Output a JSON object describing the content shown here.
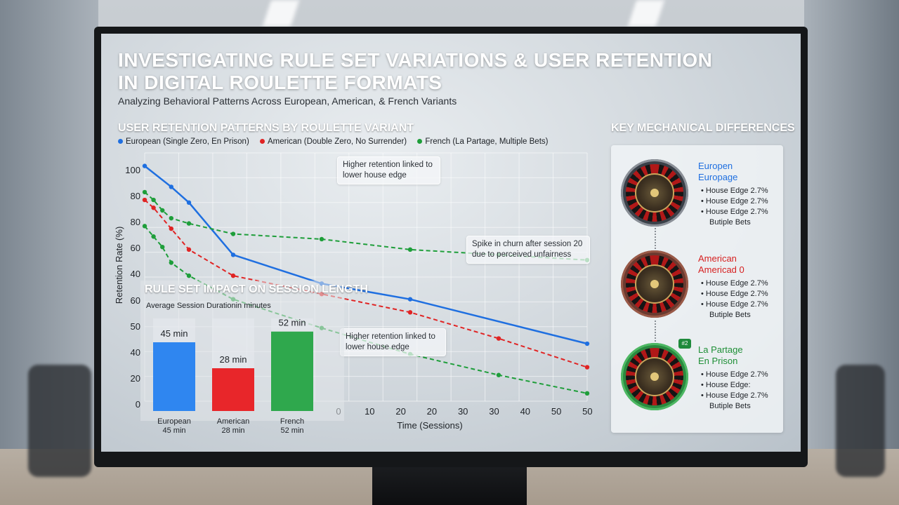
{
  "title": "INVESTIGATING RULE SET VARIATIONS & USER RETENTION IN DIGITAL ROULETTE FORMATS",
  "subtitle": "Analyzing Behavioral Patterns Across European, American, & French Variants",
  "colors": {
    "european": "#1f6fe0",
    "american": "#e02424",
    "french": "#1e9e3a"
  },
  "retention": {
    "section_title": "USER RETENTION PATTERNS BY ROULETTE VARIANT",
    "legend": [
      {
        "label": "European (Single Zero, En Prison)",
        "color": "#1f6fe0"
      },
      {
        "label": "American (Double Zero, No Surrender)",
        "color": "#e02424"
      },
      {
        "label": "French (La Partage, Multiple Bets)",
        "color": "#1e9e3a"
      }
    ],
    "callouts": {
      "top": "Higher retention linked to\nlower house edge",
      "spike": "Spike in churn after session 20\ndue to perceived unfairness",
      "bottom": "Higher retention linked to\nlower house edge"
    }
  },
  "chart_data": [
    {
      "type": "line",
      "title": "USER RETENTION PATTERNS BY ROULETTE VARIANT",
      "xlabel": "Time (Sessions)",
      "ylabel": "Retention Rate (%)",
      "x_ticks": [
        "0",
        "10",
        "20",
        "20",
        "30",
        "30",
        "40",
        "50",
        "50"
      ],
      "y_ticks": [
        "100",
        "80",
        "80",
        "60",
        "40"
      ],
      "grid": true,
      "legend_position": "top",
      "series": [
        {
          "name": "European (Single Zero, En Prison)",
          "color": "#1f6fe0",
          "style": "solid",
          "x": [
            0,
            3,
            5,
            10,
            20,
            30,
            50
          ],
          "y": [
            110,
            102,
            96,
            76,
            65,
            59,
            42
          ]
        },
        {
          "name": "American (Double Zero, No Surrender)",
          "color": "#e02424",
          "style": "dashed",
          "x": [
            0,
            1,
            3,
            5,
            10,
            20,
            30,
            40,
            50
          ],
          "y": [
            97,
            94,
            86,
            78,
            68,
            61,
            54,
            44,
            33
          ]
        },
        {
          "name": "French (La Partage, Multiple Bets)",
          "color": "#1e9e3a",
          "style": "dashed",
          "x": [
            0,
            1,
            2,
            3,
            5,
            10,
            20,
            30,
            40,
            50
          ],
          "y": [
            100,
            97,
            93,
            90,
            88,
            84,
            82,
            78,
            76,
            74
          ]
        },
        {
          "name": "French (La Partage, Multiple Bets)",
          "color": "#1e9e3a",
          "style": "dashed",
          "x": [
            0,
            1,
            2,
            3,
            5,
            10,
            20,
            30,
            40,
            50
          ],
          "y": [
            87,
            83,
            79,
            73,
            68,
            59,
            48,
            38,
            30,
            23
          ]
        }
      ]
    },
    {
      "type": "bar",
      "title": "RULE SET IMPACT ON SESSION LENGTH",
      "subtitle": "Average Session Durationin minutes",
      "categories": [
        "European",
        "American",
        "French"
      ],
      "sublabels": [
        "45 min",
        "28 min",
        "52 min"
      ],
      "value_labels": [
        "45 min",
        "28 min",
        "52 min"
      ],
      "values": [
        45,
        28,
        52
      ],
      "colors": [
        "#2f86f0",
        "#e8262a",
        "#2fa84d"
      ],
      "y_ticks": [
        "60",
        "50",
        "40",
        "20",
        "0"
      ],
      "ylim": [
        0,
        60
      ]
    }
  ],
  "key_differences": {
    "title": "KEY MECHANICAL DIFFERENCES",
    "variants": [
      {
        "name1": "Europen",
        "name2": "Europage",
        "color": "#1f6fe0",
        "rim": "#3a4048",
        "bullets": [
          "House Edge 2.7%",
          "House Edge 2.7%",
          "House Edge 2.7%"
        ],
        "extra": "Butiple Bets"
      },
      {
        "name1": "American",
        "name2": "Americad 0",
        "color": "#d62020",
        "rim": "#6b3a30",
        "bullets": [
          "House Edge 2.7%",
          "House Edge 2.7%",
          "House Edge 2.7%"
        ],
        "extra": "Butiple Bets"
      },
      {
        "name1": "La Partage",
        "name2": "En Prison",
        "color": "#1e8f36",
        "rim": "#2a8a40",
        "bullets": [
          "House Edge 2.7%",
          "House Edge:",
          "House Edge 2.7%"
        ],
        "extra": "Butiple Bets",
        "badge": "#2"
      }
    ]
  }
}
